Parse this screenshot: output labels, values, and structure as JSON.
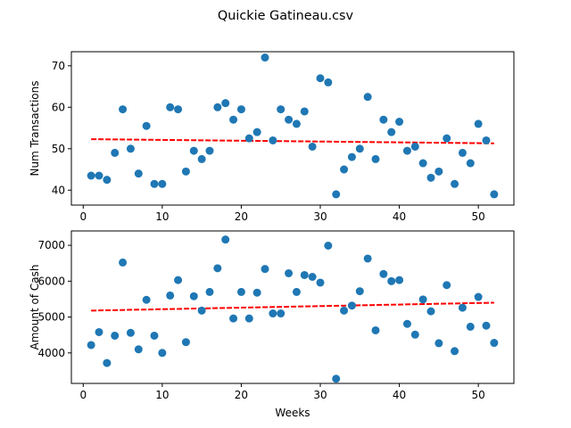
{
  "figure": {
    "title": "Quickie Gatineau.csv"
  },
  "colors": {
    "points": "#1f77b4",
    "trend": "#ff0000",
    "axes": "#000000",
    "background": "#ffffff"
  },
  "chart_data": [
    {
      "type": "scatter",
      "title": "",
      "xlabel": "",
      "ylabel": "Num Transactions",
      "xlim": [
        -1.5,
        54.5
      ],
      "ylim": [
        36.4,
        73.4
      ],
      "xticks": [
        0,
        10,
        20,
        30,
        40,
        50
      ],
      "yticks": [
        40,
        50,
        60,
        70
      ],
      "grid": false,
      "x": [
        1,
        2,
        3,
        4,
        5,
        6,
        7,
        8,
        9,
        10,
        11,
        12,
        13,
        14,
        15,
        16,
        17,
        18,
        19,
        20,
        21,
        22,
        23,
        24,
        25,
        26,
        27,
        28,
        29,
        30,
        31,
        32,
        33,
        34,
        35,
        36,
        37,
        38,
        39,
        40,
        41,
        42,
        43,
        44,
        45,
        46,
        47,
        48,
        49,
        50,
        51,
        52
      ],
      "y": [
        43.5,
        43.5,
        42.5,
        49,
        59.5,
        50,
        44,
        55.5,
        41.5,
        41.5,
        60,
        59.5,
        44.5,
        49.5,
        47.5,
        49.5,
        60,
        61,
        57,
        59.5,
        52.5,
        54,
        72,
        52,
        59.5,
        57,
        56,
        59,
        50.5,
        67,
        66,
        39,
        45,
        48,
        50,
        62.5,
        47.5,
        57,
        54,
        56.5,
        49.5,
        50.5,
        46.5,
        43,
        44.5,
        52.5,
        41.5,
        49,
        46.5,
        56,
        52,
        39
      ],
      "trend": {
        "x": [
          1,
          52
        ],
        "y": [
          52.3,
          51.3
        ]
      }
    },
    {
      "type": "scatter",
      "title": "",
      "xlabel": "Weeks",
      "ylabel": "Amount of Cash",
      "xlim": [
        -1.5,
        54.5
      ],
      "ylim": [
        3150,
        7400
      ],
      "xticks": [
        0,
        10,
        20,
        30,
        40,
        50
      ],
      "yticks": [
        4000,
        5000,
        6000,
        7000
      ],
      "grid": false,
      "x": [
        1,
        2,
        3,
        4,
        5,
        6,
        7,
        8,
        9,
        10,
        11,
        12,
        13,
        14,
        15,
        16,
        17,
        18,
        19,
        20,
        21,
        22,
        23,
        24,
        25,
        26,
        27,
        28,
        29,
        30,
        31,
        32,
        33,
        34,
        35,
        36,
        37,
        38,
        39,
        40,
        41,
        42,
        43,
        44,
        45,
        46,
        47,
        48,
        49,
        50,
        51,
        52
      ],
      "y": [
        4220,
        4580,
        3720,
        4480,
        6520,
        4560,
        4100,
        5480,
        4480,
        4000,
        5600,
        6030,
        4300,
        5580,
        5180,
        5700,
        6360,
        7160,
        4960,
        5700,
        4960,
        5680,
        6340,
        5100,
        5100,
        6220,
        5700,
        6170,
        6120,
        5960,
        6990,
        3280,
        5180,
        5320,
        5720,
        6630,
        4630,
        6200,
        6000,
        6030,
        4810,
        4510,
        5490,
        5160,
        4270,
        5890,
        4050,
        5260,
        4730,
        5560,
        4760,
        4280
      ],
      "trend": {
        "x": [
          1,
          52
        ],
        "y": [
          5180,
          5400
        ]
      }
    }
  ]
}
